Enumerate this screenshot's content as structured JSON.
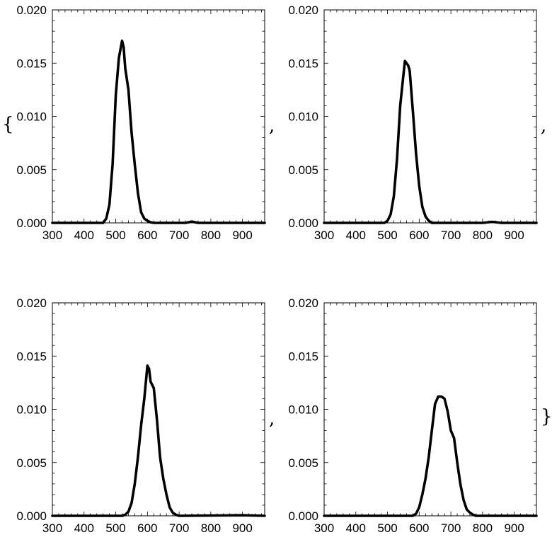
{
  "list_delimiters": {
    "open": "{",
    "close": "}",
    "separator": ","
  },
  "chart_data": [
    {
      "type": "line",
      "title": "",
      "xlabel": "",
      "ylabel": "",
      "xlim": [
        300,
        970
      ],
      "ylim": [
        0,
        0.02
      ],
      "xticks": [
        300,
        400,
        500,
        600,
        700,
        800,
        900
      ],
      "xtick_labels": [
        "300",
        "400",
        "500",
        "600",
        "700",
        "800",
        "900"
      ],
      "yticks": [
        0,
        0.005,
        0.01,
        0.015,
        0.02
      ],
      "ytick_labels": [
        "0.000",
        "0.005",
        "0.010",
        "0.015",
        "0.020"
      ],
      "grid": false,
      "line_color": "#000000",
      "series": [
        {
          "x": [
            300,
            460,
            470,
            480,
            490,
            500,
            510,
            520,
            525,
            530,
            540,
            550,
            560,
            570,
            580,
            590,
            600,
            610,
            620,
            700,
            720,
            740,
            760,
            970
          ],
          "y": [
            0,
            0,
            0.0004,
            0.0017,
            0.0055,
            0.012,
            0.0155,
            0.0171,
            0.0165,
            0.0145,
            0.0125,
            0.0085,
            0.0055,
            0.0028,
            0.001,
            0.0004,
            0.0002,
            5e-05,
            0,
            0,
            0,
            0.00012,
            0,
            0
          ]
        }
      ]
    },
    {
      "type": "line",
      "title": "",
      "xlabel": "",
      "ylabel": "",
      "xlim": [
        300,
        970
      ],
      "ylim": [
        0,
        0.02
      ],
      "xticks": [
        300,
        400,
        500,
        600,
        700,
        800,
        900
      ],
      "xtick_labels": [
        "300",
        "400",
        "500",
        "600",
        "700",
        "800",
        "900"
      ],
      "yticks": [
        0,
        0.005,
        0.01,
        0.015,
        0.02
      ],
      "ytick_labels": [
        "0.000",
        "0.005",
        "0.010",
        "0.015",
        "0.020"
      ],
      "grid": false,
      "line_color": "#000000",
      "series": [
        {
          "x": [
            300,
            490,
            500,
            510,
            520,
            530,
            540,
            550,
            555,
            560,
            565,
            570,
            580,
            590,
            600,
            610,
            620,
            630,
            640,
            800,
            830,
            860,
            970
          ],
          "y": [
            0,
            0,
            0.0002,
            0.0008,
            0.0025,
            0.006,
            0.011,
            0.0138,
            0.0152,
            0.015,
            0.0148,
            0.0143,
            0.0105,
            0.0065,
            0.0035,
            0.0015,
            0.0006,
            0.0002,
            0,
            0,
            0.0001,
            0,
            0
          ]
        }
      ]
    },
    {
      "type": "line",
      "title": "",
      "xlabel": "",
      "ylabel": "",
      "xlim": [
        300,
        970
      ],
      "ylim": [
        0,
        0.02
      ],
      "xticks": [
        300,
        400,
        500,
        600,
        700,
        800,
        900
      ],
      "xtick_labels": [
        "300",
        "400",
        "500",
        "600",
        "700",
        "800",
        "900"
      ],
      "yticks": [
        0,
        0.005,
        0.01,
        0.015,
        0.02
      ],
      "ytick_labels": [
        "0.000",
        "0.005",
        "0.010",
        "0.015",
        "0.020"
      ],
      "grid": false,
      "line_color": "#000000",
      "series": [
        {
          "x": [
            300,
            520,
            530,
            540,
            550,
            560,
            570,
            580,
            590,
            600,
            605,
            610,
            620,
            630,
            640,
            650,
            660,
            670,
            680,
            690,
            700,
            900,
            970
          ],
          "y": [
            0,
            0,
            0.0001,
            0.0004,
            0.0012,
            0.003,
            0.0055,
            0.0085,
            0.011,
            0.0141,
            0.0138,
            0.0126,
            0.012,
            0.009,
            0.0055,
            0.0035,
            0.002,
            0.0008,
            0.0003,
            0.0001,
            0,
            5e-05,
            0
          ]
        }
      ]
    },
    {
      "type": "line",
      "title": "",
      "xlabel": "",
      "ylabel": "",
      "xlim": [
        300,
        970
      ],
      "ylim": [
        0,
        0.02
      ],
      "xticks": [
        300,
        400,
        500,
        600,
        700,
        800,
        900
      ],
      "xtick_labels": [
        "300",
        "400",
        "500",
        "600",
        "700",
        "800",
        "900"
      ],
      "yticks": [
        0,
        0.005,
        0.01,
        0.015,
        0.02
      ],
      "ytick_labels": [
        "0.000",
        "0.005",
        "0.010",
        "0.015",
        "0.020"
      ],
      "grid": false,
      "line_color": "#000000",
      "series": [
        {
          "x": [
            300,
            580,
            590,
            600,
            610,
            620,
            630,
            640,
            650,
            660,
            670,
            680,
            690,
            700,
            710,
            720,
            730,
            740,
            750,
            760,
            770,
            780,
            800,
            970
          ],
          "y": [
            0,
            0,
            0.0002,
            0.0008,
            0.002,
            0.0035,
            0.0055,
            0.008,
            0.0105,
            0.0112,
            0.0112,
            0.011,
            0.0098,
            0.008,
            0.0073,
            0.005,
            0.003,
            0.0015,
            0.0006,
            0.0003,
            0.0001,
            0,
            0,
            0
          ]
        }
      ]
    }
  ]
}
